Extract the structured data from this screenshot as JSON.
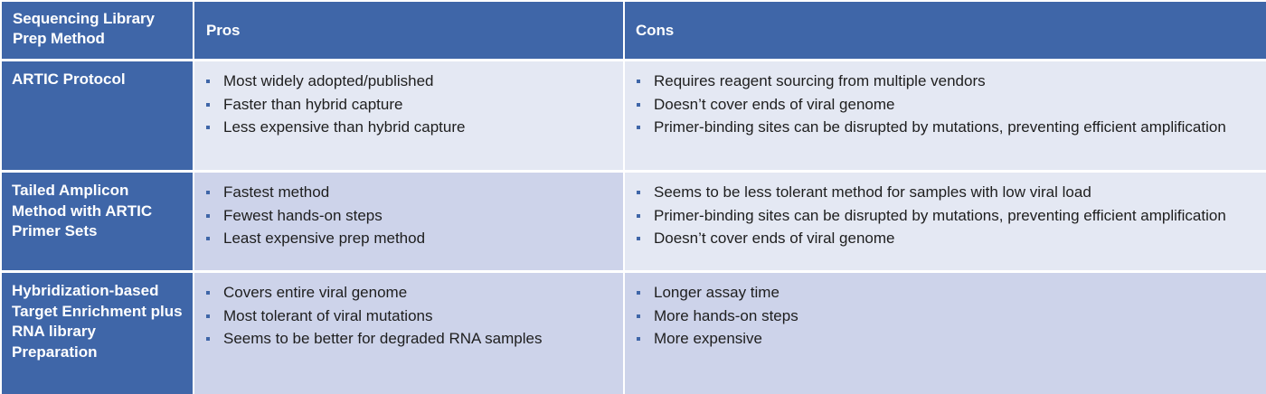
{
  "table": {
    "headers": [
      "Sequencing Library Prep Method",
      "Pros",
      "Cons"
    ],
    "rows": [
      {
        "method": "ARTIC Protocol",
        "pros": [
          "Most widely adopted/published",
          "Faster than hybrid capture",
          "Less expensive than hybrid capture"
        ],
        "cons": [
          "Requires reagent sourcing from multiple vendors",
          "Doesn’t cover ends of viral genome",
          "Primer-binding sites can be disrupted by mutations, preventing efficient amplification"
        ]
      },
      {
        "method": "Tailed Amplicon Method with ARTIC Primer Sets",
        "pros": [
          "Fastest method",
          "Fewest hands-on steps",
          "Least expensive prep method"
        ],
        "cons": [
          "Seems to be less tolerant method for samples with low viral load",
          "Primer-binding sites can be disrupted by mutations, preventing efficient amplification",
          "Doesn’t cover ends of viral genome"
        ]
      },
      {
        "method": "Hybridization-based Target Enrichment plus RNA library Preparation",
        "pros": [
          "Covers entire viral genome",
          "Most tolerant of viral mutations",
          "Seems to be better for degraded RNA samples"
        ],
        "cons": [
          "Longer assay time",
          "More hands-on steps",
          "More expensive"
        ]
      }
    ]
  },
  "colors": {
    "header_bg": "#3f66a8",
    "row_light_bg": "#e4e8f3",
    "row_dark_bg": "#cdd3ea",
    "bullet": "#3f66a8"
  }
}
